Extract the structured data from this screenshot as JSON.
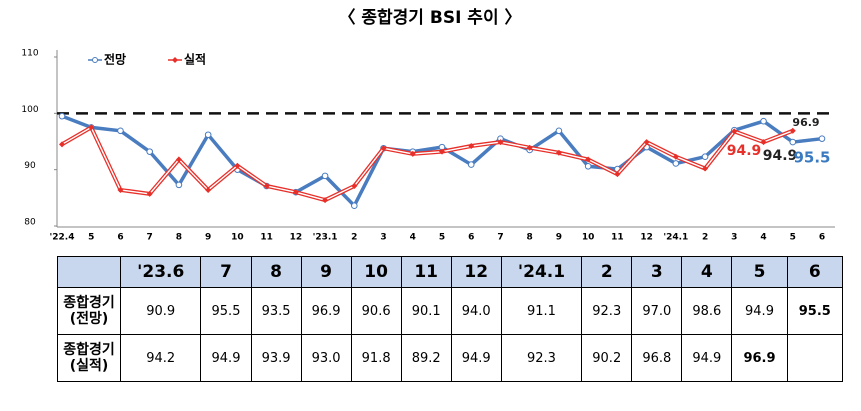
{
  "chart_data": {
    "type": "line",
    "title": "〈 종합경기 BSI 추이 〉",
    "categories": [
      "'22.4",
      "5",
      "6",
      "7",
      "8",
      "9",
      "10",
      "11",
      "12",
      "'23.1",
      "2",
      "3",
      "4",
      "5",
      "6",
      "7",
      "8",
      "9",
      "10",
      "11",
      "12",
      "'24.1",
      "2",
      "3",
      "4",
      "5",
      "6"
    ],
    "series": [
      {
        "name": "전망",
        "color": "#4a7cc0",
        "values": [
          99.5,
          97.5,
          96.9,
          93.2,
          87.3,
          96.2,
          90,
          87.1,
          86,
          88.9,
          83.6,
          93.8,
          93.2,
          94,
          90.9,
          95.5,
          93.5,
          96.9,
          90.6,
          90.1,
          94.0,
          91.1,
          92.3,
          97.0,
          98.6,
          94.9,
          95.5
        ]
      },
      {
        "name": "실적",
        "color": "#e8302a",
        "values": [
          94.5,
          97.5,
          86.4,
          85.7,
          91.8,
          86.4,
          90.7,
          87.1,
          86,
          84.6,
          87.1,
          93.8,
          92.8,
          93.2,
          94.2,
          94.9,
          93.9,
          93.0,
          91.8,
          89.2,
          94.9,
          92.3,
          90.2,
          96.8,
          94.9,
          96.9,
          null
        ]
      }
    ],
    "ylim": [
      80,
      110
    ],
    "yticks": [
      80,
      90,
      100,
      110
    ],
    "hline": 100,
    "annotations": [
      {
        "text": "96.9",
        "color": "#222222"
      },
      {
        "text": "94.9",
        "color": "#e8302a"
      },
      {
        "text": "94.9",
        "color": "#222222"
      },
      {
        "text": "95.5",
        "color": "#3a7ac0"
      }
    ]
  },
  "table": {
    "header": [
      "'23.6",
      "7",
      "8",
      "9",
      "10",
      "11",
      "12",
      "'24.1",
      "2",
      "3",
      "4",
      "5",
      "6"
    ],
    "rows": [
      {
        "label": [
          "종합경기",
          "(전망)"
        ],
        "cells": [
          "90.9",
          "95.5",
          "93.5",
          "96.9",
          "90.6",
          "90.1",
          "94.0",
          "91.1",
          "92.3",
          "97.0",
          "98.6",
          "94.9",
          "95.5"
        ]
      },
      {
        "label": [
          "종합경기",
          "(실적)"
        ],
        "cells": [
          "94.2",
          "94.9",
          "93.9",
          "93.0",
          "91.8",
          "89.2",
          "94.9",
          "92.3",
          "90.2",
          "96.8",
          "94.9",
          "96.9"
        ]
      }
    ]
  }
}
